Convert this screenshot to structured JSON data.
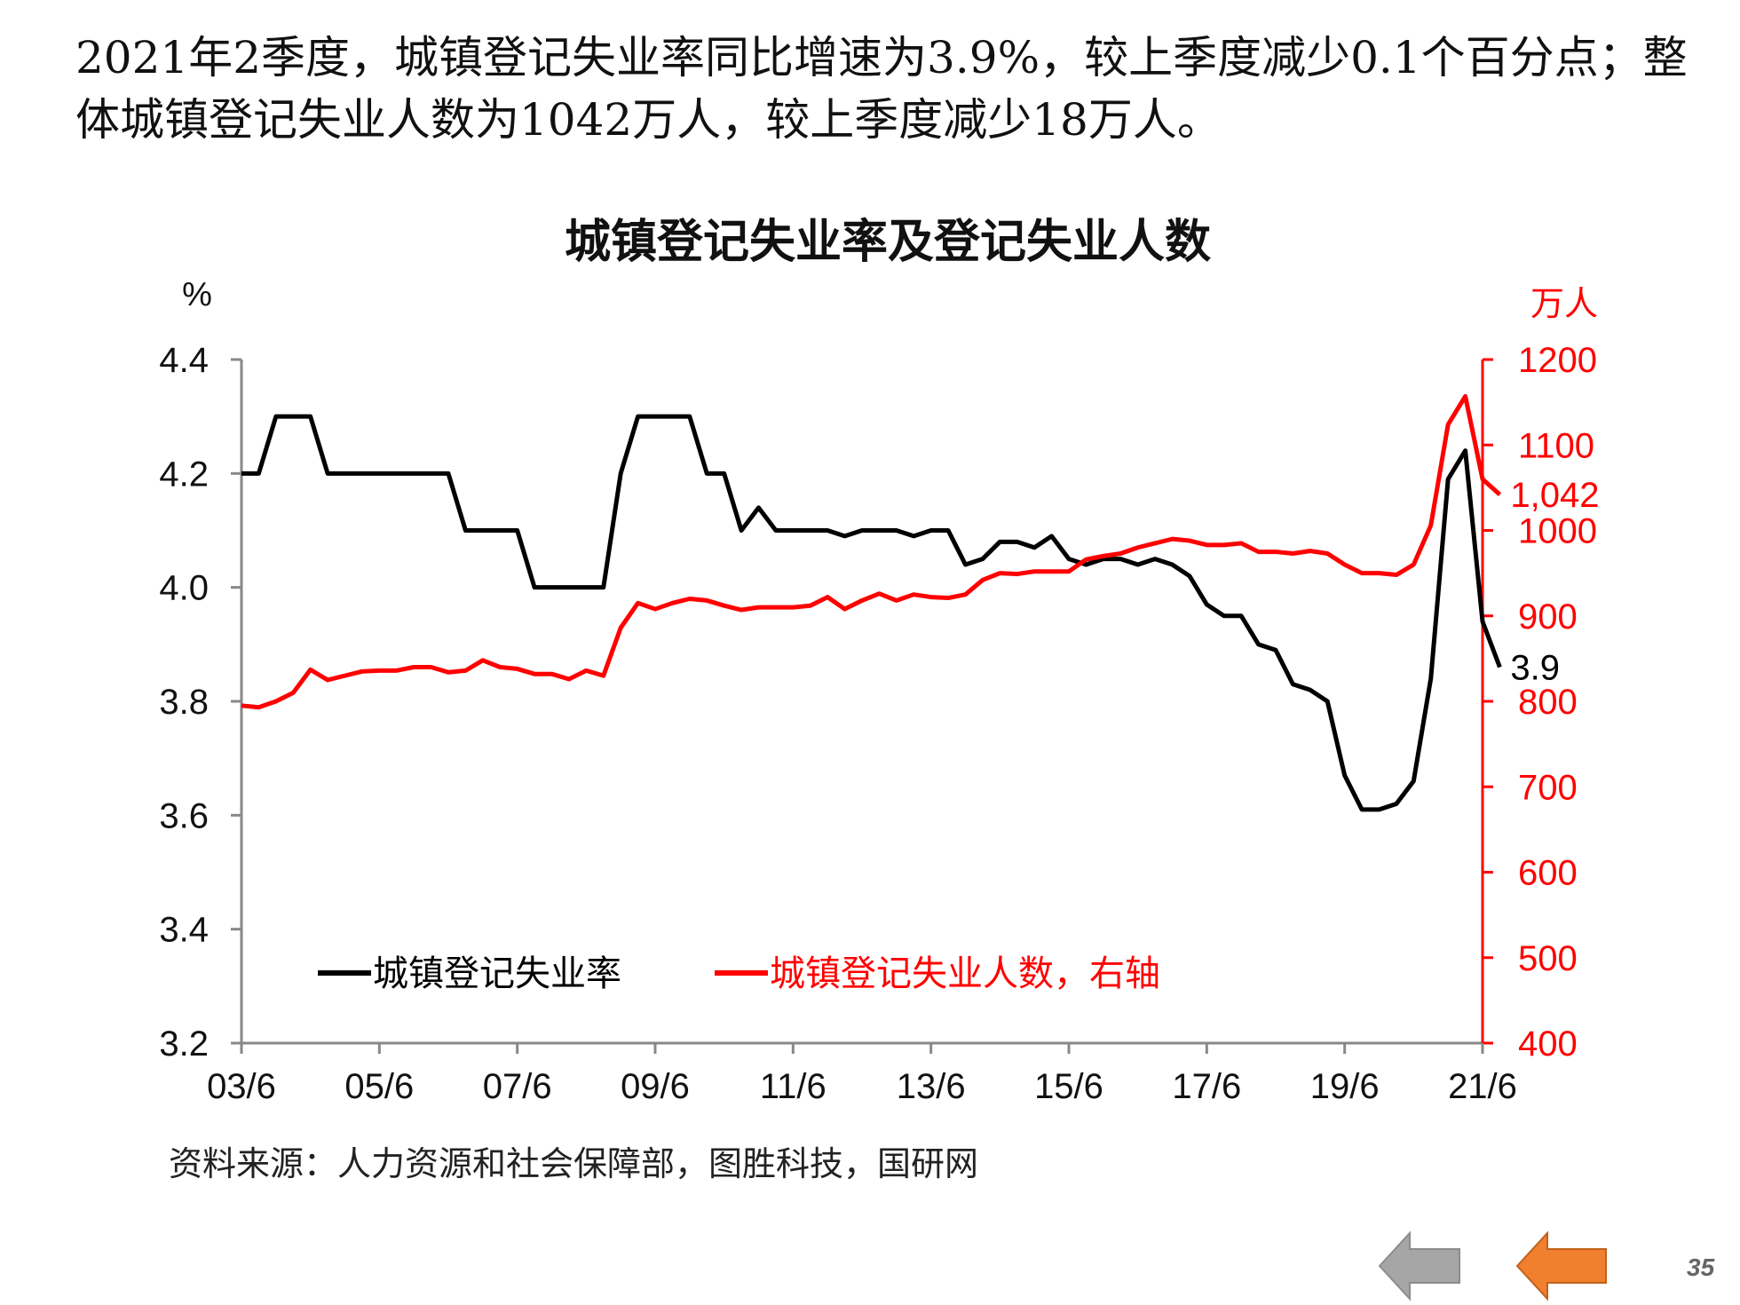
{
  "intro_text": "2021年2季度，城镇登记失业率同比增速为3.9%，较上季度减少0.1个百分点；整体城镇登记失业人数为1042万人，较上季度减少18万人。",
  "source": "资料来源：人力资源和社会保障部，图胜科技，国研网",
  "page_number": "35",
  "navigation": {
    "prev": "previous-arrow",
    "next": "next-arrow"
  },
  "colors": {
    "rate": "#000000",
    "count": "#ff0000",
    "prev_arrow": "#a6a6a6",
    "next_arrow": "#f07f2e"
  },
  "chart_data": {
    "type": "line",
    "title": "城镇登记失业率及登记失业人数",
    "y_left_unit": "%",
    "y_right_unit": "万人",
    "ylim_left": [
      3.2,
      4.4
    ],
    "ylim_right": [
      400,
      1200
    ],
    "yticks_left": [
      "4.4",
      "4.2",
      "4.0",
      "3.8",
      "3.6",
      "3.4",
      "3.2"
    ],
    "yticks_right": [
      "1200",
      "1100",
      "1000",
      "900",
      "800",
      "700",
      "600",
      "500",
      "400"
    ],
    "x_tick_labels": [
      "03/6",
      "05/6",
      "07/6",
      "09/6",
      "11/6",
      "13/6",
      "15/6",
      "17/6",
      "19/6",
      "21/6"
    ],
    "x_range_quarters": [
      0,
      72
    ],
    "grid": false,
    "legend_position": "bottom-left",
    "series": [
      {
        "name": "城镇登记失业率",
        "axis": "left",
        "color": "#000000",
        "end_label": "3.9",
        "values": [
          4.2,
          4.2,
          4.3,
          4.3,
          4.3,
          4.2,
          4.2,
          4.2,
          4.2,
          4.2,
          4.2,
          4.2,
          4.2,
          4.1,
          4.1,
          4.1,
          4.1,
          4.0,
          4.0,
          4.0,
          4.0,
          4.0,
          4.2,
          4.3,
          4.3,
          4.3,
          4.3,
          4.2,
          4.2,
          4.1,
          4.14,
          4.1,
          4.1,
          4.1,
          4.1,
          4.09,
          4.1,
          4.1,
          4.1,
          4.09,
          4.1,
          4.1,
          4.04,
          4.05,
          4.08,
          4.08,
          4.07,
          4.09,
          4.05,
          4.04,
          4.05,
          4.05,
          4.04,
          4.05,
          4.04,
          4.02,
          3.97,
          3.95,
          3.95,
          3.9,
          3.89,
          3.83,
          3.82,
          3.8,
          3.67,
          3.61,
          3.61,
          3.62,
          3.66,
          3.84,
          4.19,
          4.24,
          3.94,
          3.86
        ]
      },
      {
        "name": "城镇登记失业人数，右轴",
        "axis": "right",
        "color": "#ff0000",
        "end_label": "1,042",
        "values": [
          795,
          793,
          800,
          810,
          837,
          825,
          830,
          835,
          836,
          836,
          840,
          840,
          834,
          836,
          848,
          840,
          838,
          832,
          832,
          826,
          836,
          830,
          886,
          915,
          908,
          915,
          920,
          918,
          912,
          907,
          910,
          910,
          910,
          912,
          922,
          908,
          918,
          926,
          918,
          925,
          922,
          921,
          925,
          942,
          950,
          949,
          952,
          952,
          952,
          966,
          970,
          973,
          980,
          985,
          990,
          988,
          983,
          983,
          985,
          975,
          975,
          973,
          976,
          973,
          960,
          950,
          950,
          948,
          960,
          1006,
          1124,
          1157,
          1060,
          1042
        ]
      }
    ]
  }
}
